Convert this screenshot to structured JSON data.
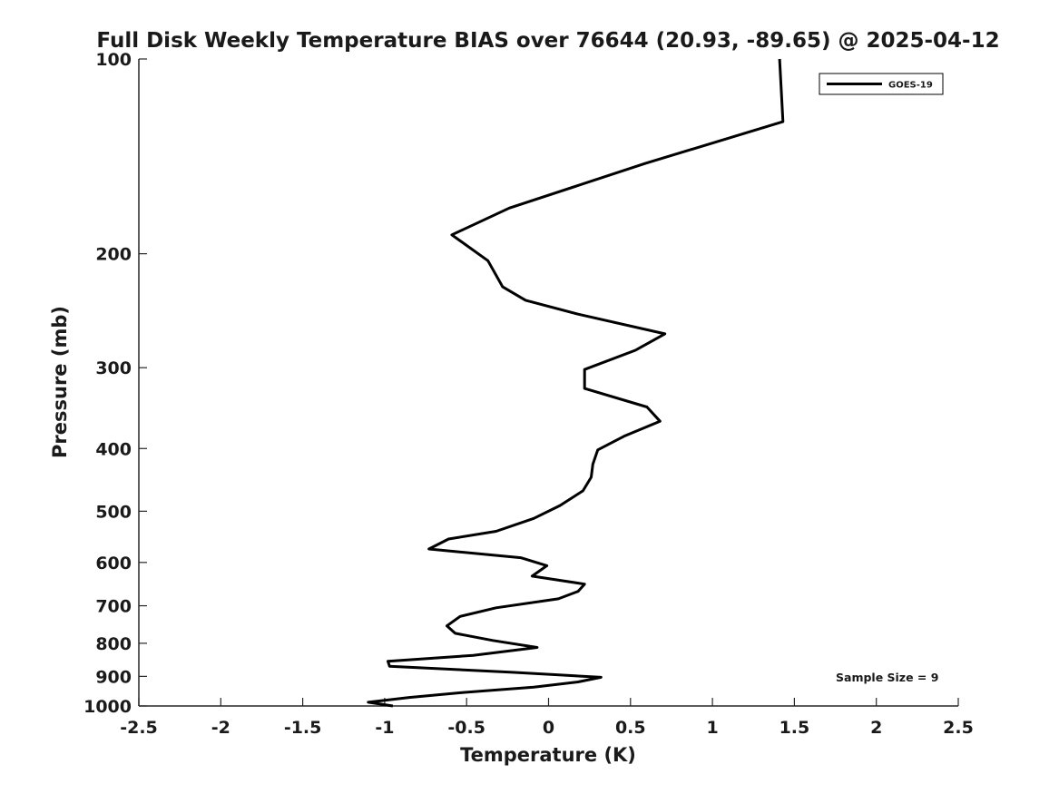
{
  "chart_data": {
    "type": "line",
    "title": "Full Disk Weekly Temperature BIAS over 76644 (20.93, -89.65) @ 2025-04-12",
    "xlabel": "Temperature (K)",
    "ylabel": "Pressure (mb)",
    "xlim": [
      -2.5,
      2.5
    ],
    "ylim": [
      1000,
      100
    ],
    "yscale": "log",
    "y_reversed": true,
    "grid": false,
    "legend_position": "top-right",
    "x_ticks": [
      -2.5,
      -2,
      -1.5,
      -1,
      -0.5,
      0,
      0.5,
      1,
      1.5,
      2,
      2.5
    ],
    "x_tick_labels": [
      "-2.5",
      "-2",
      "-1.5",
      "-1",
      "-0.5",
      "0",
      "0.5",
      "1",
      "1.5",
      "2",
      "2.5"
    ],
    "y_ticks": [
      100,
      200,
      300,
      400,
      500,
      600,
      700,
      800,
      900,
      1000
    ],
    "y_tick_labels": [
      "100",
      "200",
      "300",
      "400",
      "500",
      "600",
      "700",
      "800",
      "900",
      "1000"
    ],
    "annotation": "Sample Size = 9",
    "series": [
      {
        "name": "GOES-19",
        "color": "#000000",
        "points": [
          [
            1.41,
            100
          ],
          [
            1.43,
            125
          ],
          [
            0.59,
            145
          ],
          [
            -0.24,
            170
          ],
          [
            -0.59,
            187
          ],
          [
            -0.37,
            205
          ],
          [
            -0.28,
            225
          ],
          [
            -0.14,
            236
          ],
          [
            0.18,
            248
          ],
          [
            0.71,
            266
          ],
          [
            0.53,
            282
          ],
          [
            0.22,
            302
          ],
          [
            0.22,
            323
          ],
          [
            0.6,
            345
          ],
          [
            0.68,
            363
          ],
          [
            0.46,
            383
          ],
          [
            0.3,
            402
          ],
          [
            0.27,
            423
          ],
          [
            0.26,
            443
          ],
          [
            0.21,
            465
          ],
          [
            0.07,
            490
          ],
          [
            -0.09,
            513
          ],
          [
            -0.32,
            537
          ],
          [
            -0.61,
            552
          ],
          [
            -0.73,
            572
          ],
          [
            -0.17,
            590
          ],
          [
            -0.01,
            607
          ],
          [
            -0.1,
            630
          ],
          [
            0.22,
            648
          ],
          [
            0.18,
            665
          ],
          [
            0.06,
            683
          ],
          [
            -0.32,
            705
          ],
          [
            -0.54,
            727
          ],
          [
            -0.62,
            752
          ],
          [
            -0.57,
            772
          ],
          [
            -0.34,
            792
          ],
          [
            -0.07,
            812
          ],
          [
            -0.46,
            835
          ],
          [
            -0.98,
            853
          ],
          [
            -0.97,
            868
          ],
          [
            -0.22,
            887
          ],
          [
            0.32,
            903
          ],
          [
            0.18,
            918
          ],
          [
            -0.09,
            935
          ],
          [
            -0.52,
            953
          ],
          [
            -0.85,
            970
          ],
          [
            -1.1,
            987
          ],
          [
            -0.95,
            1000
          ]
        ]
      }
    ]
  }
}
